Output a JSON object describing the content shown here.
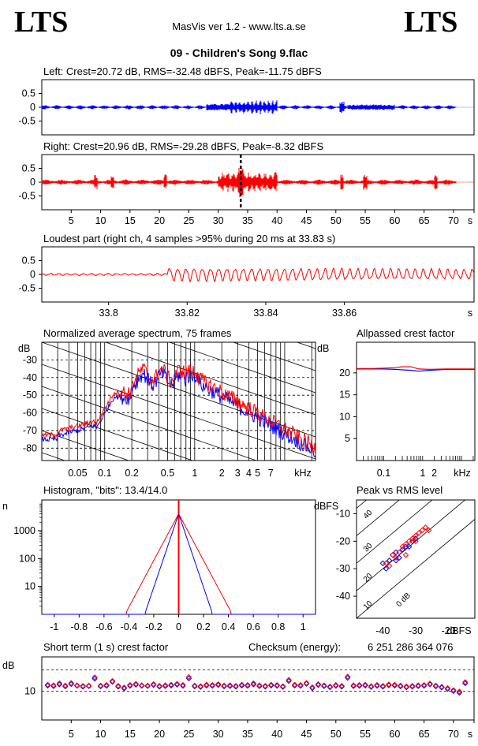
{
  "header": {
    "logo_left": "LTS",
    "logo_right": "LTS",
    "app_title": "MasVis ver 1.2 - www.lts.a.se",
    "track_title": "09 - Children's Song 9.flac"
  },
  "colors": {
    "left": "#0000ff",
    "right": "#ff0000",
    "grid": "#000000"
  },
  "chart_data": [
    {
      "type": "line",
      "id": "left-waveform",
      "title": "Left: Crest=20.72 dB, RMS=-32.48 dBFS, Peak=-11.75 dBFS",
      "xlim": [
        0,
        73.5
      ],
      "ylim": [
        -1,
        1
      ],
      "yticks": [
        "0.5",
        "0",
        "-0.5"
      ],
      "series": [
        {
          "values_envelope": "waveform",
          "color": "blue"
        }
      ]
    },
    {
      "type": "line",
      "id": "right-waveform",
      "title": "Right: Crest=20.96 dB, RMS=-29.28 dBFS, Peak=-8.32 dBFS",
      "xlim": [
        0,
        73.5
      ],
      "ylim": [
        -1,
        1
      ],
      "yticks": [
        "0.5",
        "0",
        "-0.5"
      ],
      "xticks": [
        "5",
        "10",
        "15",
        "20",
        "25",
        "30",
        "35",
        "40",
        "45",
        "50",
        "55",
        "60",
        "65",
        "70",
        "s"
      ],
      "marker_at_s": 33.83
    },
    {
      "type": "line",
      "id": "loudest-part",
      "title": "Loudest part (right ch, 4 samples >95% during 20 ms at 33.83 s)",
      "xlim": [
        33.783,
        33.893
      ],
      "ylim": [
        -1,
        1
      ],
      "yticks": [
        "0.5",
        "0",
        "-0.5"
      ],
      "xticks": [
        "33.8",
        "33.82",
        "33.84",
        "33.86",
        "s"
      ]
    },
    {
      "type": "line",
      "id": "spectrum",
      "title": "Normalized average spectrum, 75 frames",
      "ylabel": "dB",
      "xlabel": "kHz",
      "xscale": "log",
      "xlim_khz": [
        0.02,
        22
      ],
      "ylim": [
        -87,
        -20
      ],
      "yticks": [
        "-30",
        "-40",
        "-50",
        "-60",
        "-70",
        "-80"
      ],
      "xticks": [
        "0.05",
        "0.1",
        "0.2",
        "0.5",
        "1",
        "2",
        "3",
        "4",
        "5",
        "7",
        "kHz"
      ]
    },
    {
      "type": "line",
      "id": "allpass-crest",
      "title": "Allpassed crest factor",
      "ylabel": "dB",
      "xscale": "log",
      "xlim_khz": [
        0.02,
        22
      ],
      "ylim": [
        0,
        27
      ],
      "yticks": [
        "20",
        "15",
        "10",
        "5"
      ],
      "xticks": [
        "0.1",
        "1",
        "2",
        "kHz"
      ],
      "series": [
        {
          "color": "blue",
          "values": [
            20.9,
            20.9,
            20.9,
            20.8,
            20.7,
            20.6,
            20.4,
            20.6,
            20.8,
            20.8
          ]
        },
        {
          "color": "red",
          "values": [
            21.0,
            21.0,
            21.1,
            21.2,
            21.4,
            21.4,
            20.9,
            20.8,
            20.9,
            20.9
          ]
        }
      ]
    },
    {
      "type": "line",
      "id": "histogram",
      "title": "Histogram, \"bits\": 13.4/14.0",
      "ylabel": "n",
      "yscale": "log",
      "xlim": [
        -1.1,
        1.1
      ],
      "yticks": [
        "1000",
        "100",
        "10"
      ],
      "xticks": [
        "-1",
        "-0.8",
        "-0.6",
        "-0.4",
        "-0.2",
        "0",
        "0.2",
        "0.4",
        "0.6",
        "0.8",
        "1"
      ]
    },
    {
      "type": "scatter",
      "id": "peak-vs-rms",
      "title": "Peak vs RMS level",
      "ylabel": "dBFS",
      "xlabel": "dBFS",
      "xlim": [
        -48,
        -12
      ],
      "ylim": [
        -48,
        -5
      ],
      "yticks": [
        "-10",
        "-20",
        "-30",
        "-40"
      ],
      "xticks": [
        "-40",
        "-30",
        "-20",
        "dBFS"
      ],
      "diagonals": [
        "40",
        "30",
        "20",
        "10",
        "0 dB"
      ],
      "series": [
        {
          "color": "blue",
          "points": [
            [
              -40,
              -28
            ],
            [
              -38,
              -27
            ],
            [
              -37,
              -25
            ],
            [
              -36,
              -24
            ],
            [
              -35,
              -26
            ],
            [
              -34,
              -23
            ],
            [
              -33,
              -22
            ],
            [
              -32,
              -22
            ],
            [
              -31,
              -20
            ],
            [
              -30,
              -19
            ],
            [
              -39,
              -30
            ],
            [
              -36,
              -27
            ]
          ]
        },
        {
          "color": "red",
          "points": [
            [
              -39,
              -28
            ],
            [
              -37,
              -25
            ],
            [
              -35,
              -24
            ],
            [
              -34,
              -22
            ],
            [
              -33,
              -21
            ],
            [
              -32,
              -20
            ],
            [
              -31,
              -19
            ],
            [
              -30,
              -18
            ],
            [
              -29,
              -17
            ],
            [
              -28,
              -16
            ],
            [
              -27,
              -15
            ],
            [
              -26,
              -16
            ],
            [
              -30,
              -20
            ],
            [
              -33,
              -25
            ],
            [
              -36,
              -26
            ],
            [
              -38,
              -29
            ]
          ]
        }
      ]
    },
    {
      "type": "scatter",
      "id": "short-term-crest",
      "title": "Short term (1 s) crest factor",
      "ylabel": "dB",
      "xlim": [
        0,
        73.5
      ],
      "ylim": [
        0,
        22
      ],
      "yticks": [
        "10"
      ],
      "xticks": [
        "5",
        "10",
        "15",
        "20",
        "25",
        "30",
        "35",
        "40",
        "45",
        "50",
        "55",
        "60",
        "65",
        "70",
        "s"
      ],
      "series": [
        {
          "color": "blue",
          "values": [
            12.0,
            11.8,
            12.4,
            11.7,
            12.5,
            11.9,
            11.6,
            11.8,
            14.4,
            11.7,
            11.9,
            13.3,
            11.6,
            11.0,
            11.9,
            12.3,
            11.9,
            11.8,
            12.2,
            11.6,
            11.8,
            12.0,
            12.3,
            11.9,
            14.5,
            11.7,
            11.5,
            12.0,
            11.9,
            12.2,
            11.7,
            11.8,
            11.6,
            12.0,
            11.9,
            12.4,
            11.8,
            11.6,
            12.0,
            11.9,
            11.5,
            13.6,
            12.0,
            11.9,
            12.6,
            11.1,
            12.2,
            11.8,
            11.4,
            11.9,
            11.6,
            14.7,
            11.8,
            11.9,
            12.0,
            11.5,
            11.9,
            11.6,
            12.1,
            12.0,
            11.7,
            11.4,
            11.6,
            11.8,
            11.9,
            12.4,
            11.7,
            11.3,
            10.8,
            10.1,
            9.5,
            12.8
          ]
        },
        {
          "color": "red",
          "values": [
            12.3,
            12.1,
            12.8,
            12.0,
            12.9,
            12.1,
            11.9,
            12.0,
            14.9,
            12.0,
            12.2,
            13.6,
            11.9,
            11.3,
            12.2,
            12.6,
            12.1,
            12.0,
            12.5,
            11.9,
            12.1,
            12.3,
            12.6,
            12.2,
            15.0,
            12.0,
            11.8,
            12.3,
            12.2,
            12.5,
            12.0,
            12.1,
            11.9,
            12.3,
            12.2,
            12.8,
            12.1,
            11.9,
            12.3,
            12.2,
            11.8,
            14.0,
            12.3,
            12.2,
            12.9,
            11.4,
            12.5,
            12.1,
            11.7,
            12.2,
            11.9,
            15.1,
            12.1,
            12.2,
            12.3,
            11.8,
            12.2,
            11.9,
            12.4,
            12.3,
            12.0,
            11.7,
            11.9,
            12.1,
            12.2,
            12.7,
            12.0,
            11.6,
            11.1,
            10.4,
            9.9,
            13.2
          ]
        }
      ]
    }
  ],
  "checksum": {
    "label": "Checksum (energy):",
    "value": "6 251 286 364 076"
  }
}
